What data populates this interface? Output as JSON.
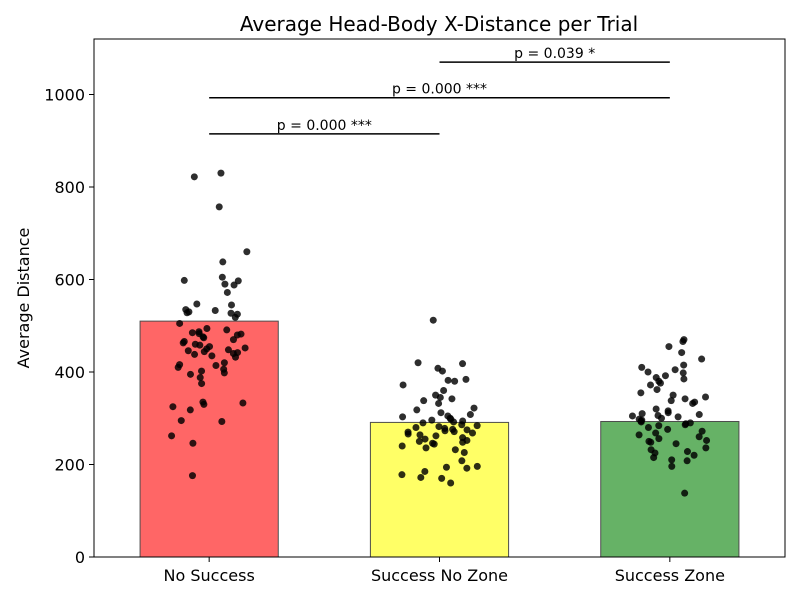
{
  "chart_data": {
    "type": "bar",
    "title": "Average Head-Body X-Distance per Trial",
    "xlabel": "",
    "ylabel": "Average Distance",
    "ylim": [
      0,
      1120
    ],
    "yticks": [
      0,
      200,
      400,
      600,
      800,
      1000
    ],
    "grid": false,
    "categories": [
      "No Success",
      "Success No Zone",
      "Success Zone"
    ],
    "values": [
      510,
      291,
      293
    ],
    "bar_colors": [
      "#ff6666",
      "#ffff66",
      "#66b266"
    ],
    "edge_color": "#4d4d4d",
    "point_color": "#000000",
    "points": [
      [
        830,
        822,
        757,
        660,
        638,
        605,
        598,
        597,
        590,
        588,
        572,
        547,
        545,
        535,
        533,
        530,
        528,
        527,
        525,
        518,
        505,
        494,
        491,
        487,
        485,
        483,
        482,
        480,
        476,
        474,
        470,
        466,
        463,
        460,
        458,
        455,
        452,
        450,
        448,
        446,
        444,
        442,
        440,
        438,
        435,
        432,
        420,
        416,
        414,
        410,
        406,
        402,
        398,
        395,
        388,
        375,
        335,
        333,
        330,
        325,
        318,
        295,
        293,
        262,
        246,
        176
      ],
      [
        512,
        420,
        418,
        408,
        402,
        384,
        382,
        380,
        372,
        360,
        350,
        345,
        342,
        338,
        332,
        322,
        318,
        312,
        308,
        305,
        303,
        300,
        298,
        296,
        294,
        292,
        290,
        286,
        284,
        282,
        280,
        278,
        276,
        275,
        273,
        271,
        270,
        268,
        266,
        264,
        262,
        258,
        255,
        252,
        250,
        248,
        246,
        244,
        240,
        236,
        232,
        226,
        208,
        196,
        194,
        192,
        185,
        178,
        172,
        170,
        160
      ],
      [
        470,
        466,
        455,
        442,
        428,
        415,
        410,
        405,
        400,
        398,
        392,
        388,
        385,
        380,
        376,
        372,
        362,
        355,
        350,
        346,
        342,
        338,
        335,
        332,
        320,
        316,
        312,
        310,
        308,
        306,
        305,
        303,
        300,
        298,
        296,
        294,
        292,
        290,
        288,
        286,
        284,
        280,
        276,
        272,
        268,
        264,
        260,
        256,
        252,
        250,
        248,
        245,
        236,
        232,
        228,
        225,
        220,
        215,
        210,
        208,
        196,
        138
      ]
    ],
    "significance": [
      {
        "from": 0,
        "to": 1,
        "y": 915,
        "label": "p = 0.000  ***"
      },
      {
        "from": 0,
        "to": 2,
        "y": 993,
        "label": "p = 0.000  ***"
      },
      {
        "from": 1,
        "to": 2,
        "y": 1070,
        "label": "p = 0.039  *"
      }
    ]
  }
}
